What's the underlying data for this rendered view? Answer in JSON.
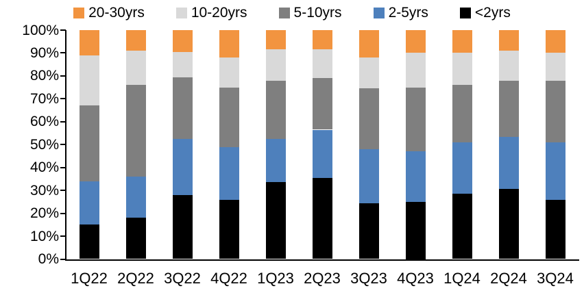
{
  "chart_data": {
    "type": "bar",
    "stacked": true,
    "percent_stacked": true,
    "title": "",
    "xlabel": "",
    "ylabel": "",
    "categories": [
      "1Q22",
      "2Q22",
      "3Q22",
      "4Q22",
      "1Q23",
      "2Q23",
      "3Q23",
      "4Q23",
      "1Q24",
      "2Q24",
      "3Q24"
    ],
    "series": [
      {
        "name": "<2yrs",
        "color": "#000000",
        "values": [
          15,
          18,
          28,
          26,
          33.5,
          35.5,
          24.5,
          25,
          28.5,
          30.5,
          26
        ]
      },
      {
        "name": "2-5yrs",
        "color": "#4E80BC",
        "values": [
          19,
          18,
          24.5,
          23,
          19,
          21,
          23.5,
          22,
          22.5,
          23,
          25
        ]
      },
      {
        "name": "5-10yrs",
        "color": "#7F7F7F",
        "values": [
          33,
          40,
          27,
          26,
          25.5,
          22.5,
          26.5,
          28,
          25,
          24.5,
          27
        ]
      },
      {
        "name": "10-20yrs",
        "color": "#D9D9D9",
        "values": [
          22,
          15,
          11,
          13,
          13.5,
          12.5,
          13.5,
          15,
          14,
          13,
          12
        ]
      },
      {
        "name": "20-30yrs",
        "color": "#F29440",
        "values": [
          11,
          9,
          9.5,
          12,
          8.5,
          8.5,
          12,
          10,
          10,
          9,
          10
        ]
      }
    ],
    "y_ticks": [
      "0%",
      "10%",
      "20%",
      "30%",
      "40%",
      "50%",
      "60%",
      "70%",
      "80%",
      "90%",
      "100%"
    ],
    "ylim": [
      0,
      100
    ],
    "grid": false,
    "legend_position": "top",
    "legend_order": "reversed",
    "axis_color": "#000000"
  }
}
